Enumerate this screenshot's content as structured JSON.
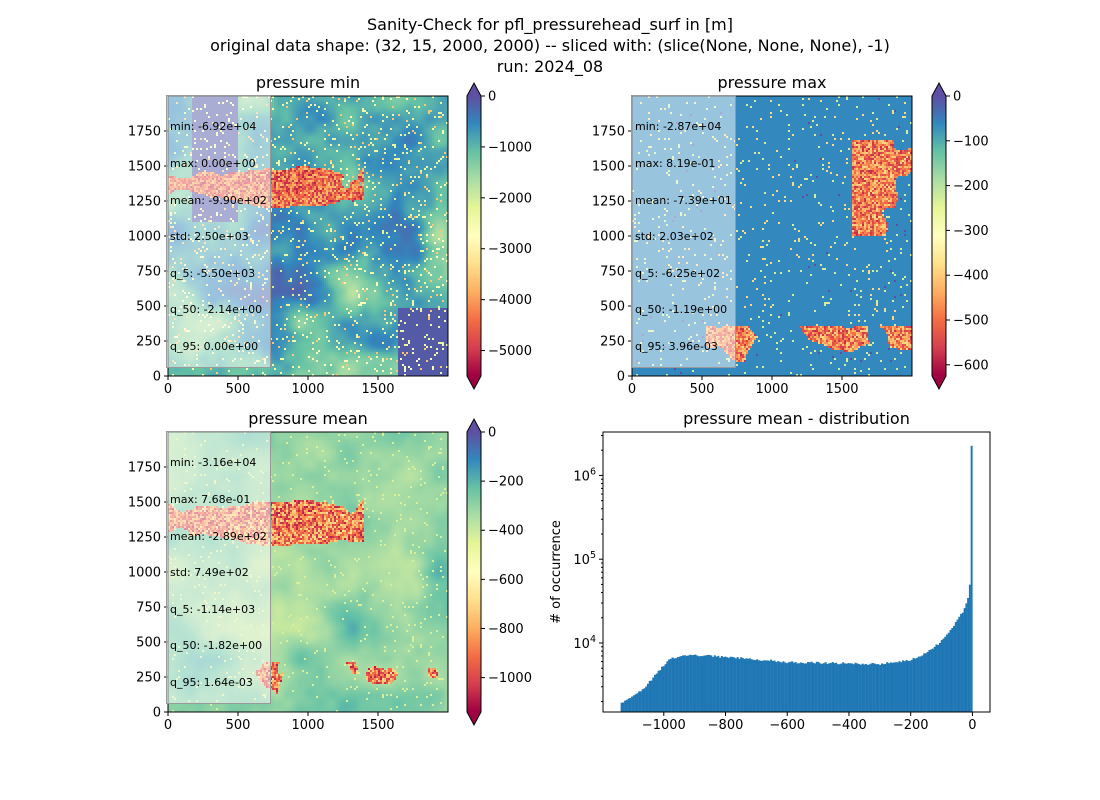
{
  "suptitle": {
    "line1": "Sanity-Check for pfl_pressurehead_surf in [m]",
    "line2": "original data shape: (32, 15, 2000, 2000) -- sliced with: (slice(None, None, None), -1)",
    "line3": "run: 2024_08"
  },
  "chart_data": [
    {
      "type": "heatmap",
      "title": "pressure min",
      "x_ticks": [
        "0",
        "500",
        "1000",
        "1500"
      ],
      "y_ticks": [
        "0",
        "250",
        "500",
        "750",
        "1000",
        "1250",
        "1500",
        "1750"
      ],
      "xlim": [
        0,
        2000
      ],
      "ylim": [
        0,
        2000
      ],
      "colorbar": {
        "range": [
          -5500,
          0
        ],
        "ticks": [
          "0",
          "−1000",
          "−2000",
          "−3000",
          "−4000",
          "−5000"
        ],
        "tick_values": [
          0,
          -1000,
          -2000,
          -3000,
          -4000,
          -5000
        ],
        "colormap": "Spectral",
        "extend": "both"
      },
      "stats": [
        "min: -6.92e+04",
        "max: 0.00e+00",
        "mean: -9.90e+02",
        "std: 2.50e+03",
        "q_5: -5.50e+03",
        "q_50: -2.14e+00",
        "q_95: 0.00e+00"
      ]
    },
    {
      "type": "heatmap",
      "title": "pressure max",
      "x_ticks": [
        "0",
        "500",
        "1000",
        "1500"
      ],
      "y_ticks": [
        "0",
        "250",
        "500",
        "750",
        "1000",
        "1250",
        "1500",
        "1750"
      ],
      "xlim": [
        0,
        2000
      ],
      "ylim": [
        0,
        2000
      ],
      "colorbar": {
        "range": [
          -625,
          0
        ],
        "ticks": [
          "0",
          "−100",
          "−200",
          "−300",
          "−400",
          "−500",
          "−600"
        ],
        "tick_values": [
          0,
          -100,
          -200,
          -300,
          -400,
          -500,
          -600
        ],
        "colormap": "Spectral",
        "extend": "both"
      },
      "stats": [
        "min: -2.87e+04",
        "max: 8.19e-01",
        "mean: -7.39e+01",
        "std: 2.03e+02",
        "q_5: -6.25e+02",
        "q_50: -1.19e+00",
        "q_95: 3.96e-03"
      ]
    },
    {
      "type": "heatmap",
      "title": "pressure mean",
      "x_ticks": [
        "0",
        "500",
        "1000",
        "1500"
      ],
      "y_ticks": [
        "0",
        "250",
        "500",
        "750",
        "1000",
        "1250",
        "1500",
        "1750"
      ],
      "xlim": [
        0,
        2000
      ],
      "ylim": [
        0,
        2000
      ],
      "colorbar": {
        "range": [
          -1140,
          0
        ],
        "ticks": [
          "0",
          "−200",
          "−400",
          "−600",
          "−800",
          "−1000"
        ],
        "tick_values": [
          0,
          -200,
          -400,
          -600,
          -800,
          -1000
        ],
        "colormap": "Spectral",
        "extend": "both"
      },
      "stats": [
        "min: -3.16e+04",
        "max: 7.68e-01",
        "mean: -2.89e+02",
        "std: 7.49e+02",
        "q_5: -1.14e+03",
        "q_50: -1.82e+00",
        "q_95: 1.64e-03"
      ]
    },
    {
      "type": "bar",
      "title": "pressure mean - distribution",
      "ylabel": "# of occurrence",
      "xlabel": "",
      "y_scale": "log",
      "xlim": [
        -1197,
        57
      ],
      "ylim": [
        1500,
        3300000
      ],
      "x_ticks": [
        "−1000",
        "−800",
        "−600",
        "−400",
        "−200",
        "0"
      ],
      "x_tick_values": [
        -1000,
        -800,
        -600,
        -400,
        -200,
        0
      ],
      "y_ticks": [
        "10",
        "10",
        "10"
      ],
      "y_tick_exponents": [
        "4",
        "5",
        "6"
      ],
      "y_tick_values": [
        10000,
        100000,
        1000000
      ],
      "bin_range": [
        -1140,
        0
      ],
      "bins": 200,
      "color": "#1f77b4",
      "profile": [
        {
          "x": -1140,
          "count": 1900
        },
        {
          "x": -1100,
          "count": 2300
        },
        {
          "x": -1060,
          "count": 3000
        },
        {
          "x": -1020,
          "count": 4500
        },
        {
          "x": -980,
          "count": 6500
        },
        {
          "x": -940,
          "count": 7000
        },
        {
          "x": -880,
          "count": 7100
        },
        {
          "x": -800,
          "count": 6800
        },
        {
          "x": -700,
          "count": 6400
        },
        {
          "x": -600,
          "count": 5900
        },
        {
          "x": -500,
          "count": 5800
        },
        {
          "x": -400,
          "count": 5700
        },
        {
          "x": -300,
          "count": 5600
        },
        {
          "x": -200,
          "count": 6300
        },
        {
          "x": -150,
          "count": 7500
        },
        {
          "x": -100,
          "count": 10500
        },
        {
          "x": -60,
          "count": 16000
        },
        {
          "x": -30,
          "count": 24000
        },
        {
          "x": -12,
          "count": 36000
        },
        {
          "x": -6,
          "count": 66000
        },
        {
          "x": -1,
          "count": 2200000
        }
      ]
    }
  ]
}
